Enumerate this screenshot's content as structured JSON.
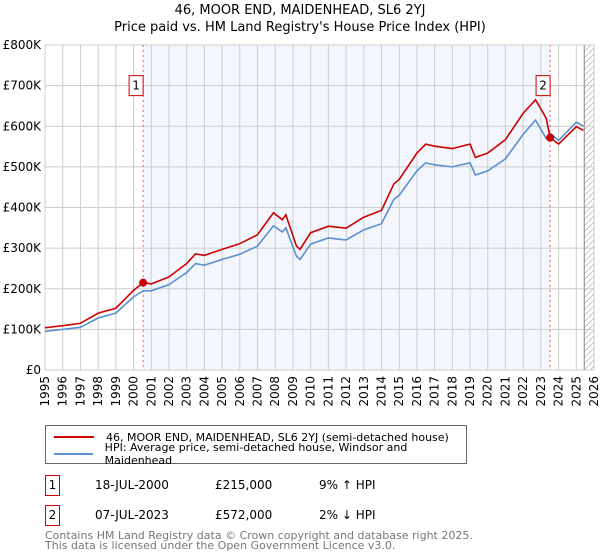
{
  "chart_data": {
    "type": "line",
    "title": "46, MOOR END, MAIDENHEAD, SL6 2YJ",
    "subtitle": "Price paid vs. HM Land Registry's House Price Index (HPI)",
    "xlim": [
      1995,
      2026
    ],
    "ylim": [
      0,
      800000
    ],
    "x_ticks": [
      "1995",
      "1996",
      "1997",
      "1998",
      "1999",
      "2000",
      "2001",
      "2002",
      "2003",
      "2004",
      "2005",
      "2006",
      "2007",
      "2008",
      "2009",
      "2010",
      "2011",
      "2012",
      "2013",
      "2014",
      "2015",
      "2016",
      "2017",
      "2018",
      "2019",
      "2020",
      "2021",
      "2022",
      "2023",
      "2024",
      "2025",
      "2026"
    ],
    "y_ticks": [
      {
        "v": 0,
        "label": "£0"
      },
      {
        "v": 100000,
        "label": "£100K"
      },
      {
        "v": 200000,
        "label": "£200K"
      },
      {
        "v": 300000,
        "label": "£300K"
      },
      {
        "v": 400000,
        "label": "£400K"
      },
      {
        "v": 500000,
        "label": "£500K"
      },
      {
        "v": 600000,
        "label": "£600K"
      },
      {
        "v": 700000,
        "label": "£700K"
      },
      {
        "v": 800000,
        "label": "£800K"
      }
    ],
    "grid": true,
    "series": [
      {
        "name": "46, MOOR END, MAIDENHEAD, SL6 2YJ (semi-detached house)",
        "color": "#cc0000",
        "x": [
          1995,
          1996,
          1997,
          1998,
          1999,
          2000,
          2000.54,
          2001,
          2002,
          2003,
          2003.5,
          2004,
          2005,
          2006,
          2007,
          2007.9,
          2008.4,
          2008.6,
          2009.2,
          2009.4,
          2010,
          2011,
          2012,
          2013,
          2014,
          2014.7,
          2015,
          2016,
          2016.5,
          2017,
          2018,
          2019,
          2019.3,
          2020,
          2021,
          2022,
          2022.7,
          2023.3,
          2023.52,
          2024,
          2025,
          2025.4
        ],
        "y": [
          104000,
          109000,
          115000,
          140000,
          152000,
          196000,
          215000,
          212000,
          229000,
          262000,
          286000,
          282000,
          297000,
          311000,
          333000,
          387000,
          370000,
          382000,
          305000,
          297000,
          338000,
          354000,
          349000,
          376000,
          393000,
          458000,
          469000,
          534000,
          556000,
          551000,
          545000,
          556000,
          523000,
          534000,
          567000,
          632000,
          665000,
          620000,
          572000,
          556000,
          599000,
          590000
        ]
      },
      {
        "name": "HPI: Average price, semi-detached house, Windsor and Maidenhead",
        "color": "#5b8fd0",
        "x": [
          1995,
          1996,
          1997,
          1998,
          1999,
          2000,
          2000.54,
          2001,
          2002,
          2003,
          2003.5,
          2004,
          2005,
          2006,
          2007,
          2007.9,
          2008.4,
          2008.6,
          2009.2,
          2009.4,
          2010,
          2011,
          2012,
          2013,
          2014,
          2014.7,
          2015,
          2016,
          2016.5,
          2017,
          2018,
          2019,
          2019.3,
          2020,
          2021,
          2022,
          2022.7,
          2023.3,
          2023.52,
          2024,
          2025,
          2025.4
        ],
        "y": [
          95000,
          100000,
          105000,
          128000,
          140000,
          180000,
          195000,
          195000,
          210000,
          240000,
          262000,
          258000,
          272000,
          285000,
          305000,
          355000,
          340000,
          350000,
          280000,
          272000,
          310000,
          325000,
          320000,
          345000,
          360000,
          420000,
          430000,
          490000,
          510000,
          505000,
          500000,
          510000,
          480000,
          490000,
          520000,
          580000,
          615000,
          570000,
          583000,
          565000,
          610000,
          600000
        ]
      }
    ],
    "sales": [
      {
        "id": "1",
        "x": 2000.54,
        "price": 215000
      },
      {
        "id": "2",
        "x": 2023.52,
        "price": 572000
      }
    ]
  },
  "legend": {
    "item1": "46, MOOR END, MAIDENHEAD, SL6 2YJ (semi-detached house)",
    "item2": "HPI: Average price, semi-detached house, Windsor and Maidenhead"
  },
  "sales_table": [
    {
      "marker": "1",
      "date": "18-JUL-2000",
      "price": "£215,000",
      "hpi": "9% ↑ HPI"
    },
    {
      "marker": "2",
      "date": "07-JUL-2023",
      "price": "£572,000",
      "hpi": "2% ↓ HPI"
    }
  ],
  "footer": {
    "line1": "Contains HM Land Registry data © Crown copyright and database right 2025.",
    "line2": "This data is licensed under the Open Government Licence v3.0."
  }
}
